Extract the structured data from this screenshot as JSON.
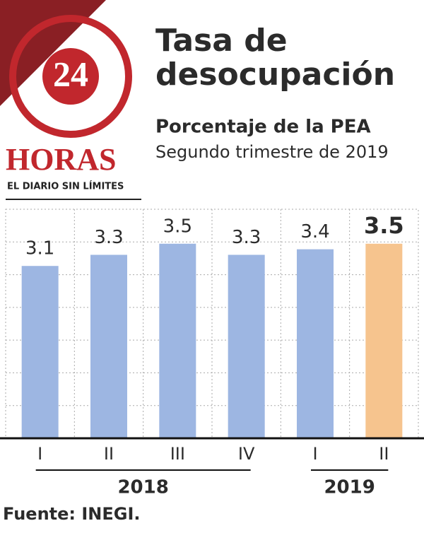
{
  "logo": {
    "number": "24",
    "name": "HORAS",
    "tagline": "EL DIARIO SIN LÍMITES"
  },
  "chart_data": {
    "type": "bar",
    "title": "Tasa de desocupación",
    "subtitle": "Porcentaje de la PEA",
    "subtitle2": "Segundo trimestre de 2019",
    "categories": [
      "I",
      "II",
      "III",
      "IV",
      "I",
      "II"
    ],
    "values": [
      3.1,
      3.3,
      3.5,
      3.3,
      3.4,
      3.5
    ],
    "colors": [
      "#9db6e2",
      "#9db6e2",
      "#9db6e2",
      "#9db6e2",
      "#9db6e2",
      "#f6c48e"
    ],
    "highlight_color": "#f6c48e",
    "groups": [
      {
        "name": "2018",
        "count": 4
      },
      {
        "name": "2019",
        "count": 2
      }
    ],
    "ylim": [
      0,
      4.12
    ],
    "grid": true,
    "source": "Fuente: INEGI."
  }
}
